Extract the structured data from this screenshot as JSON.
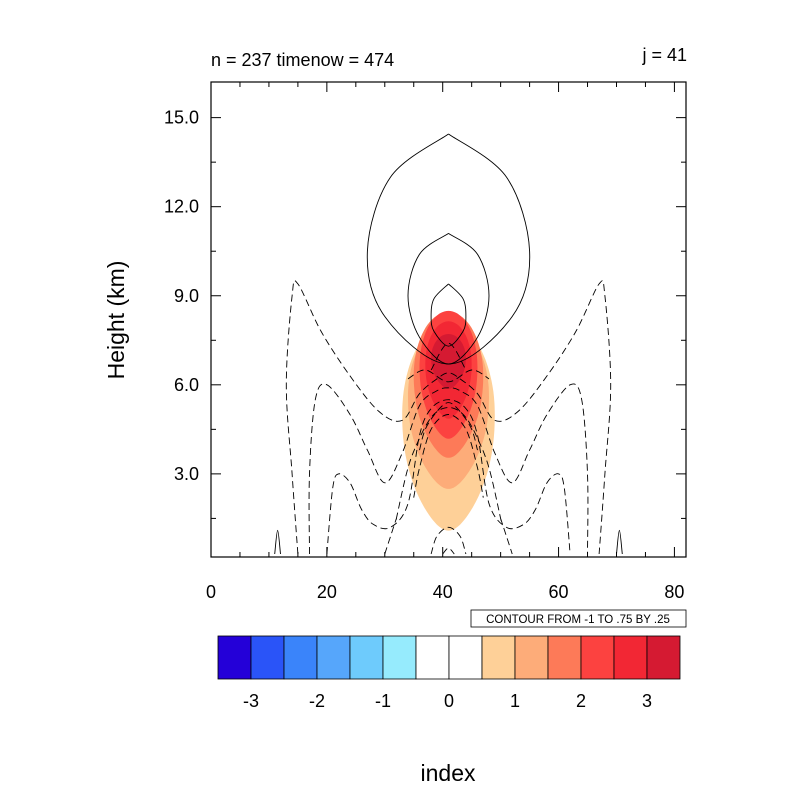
{
  "chart_data": {
    "type": "contour",
    "title_left": "n = 237 timenow = 474",
    "title_right": "j = 41",
    "xlabel": "index",
    "ylabel": "Height (km)",
    "xlim": [
      0,
      82
    ],
    "ylim": [
      0.2,
      16.2
    ],
    "x_ticks": [
      0,
      20,
      40,
      60,
      80
    ],
    "x_tick_labels": [
      "0",
      "20",
      "40",
      "60",
      "80"
    ],
    "y_ticks": [
      3.0,
      6.0,
      9.0,
      12.0,
      15.0
    ],
    "y_tick_labels": [
      "3.0",
      "6.0",
      "9.0",
      "12.0",
      "15.0"
    ],
    "contour_info": "CONTOUR FROM -1 TO .75 BY .25",
    "filled_regions": [
      {
        "level": 0.5,
        "color": "#fed098",
        "center_x": 41,
        "center_y": 5.0,
        "half_width": 8.0,
        "half_height": 3.4
      },
      {
        "level": 1.0,
        "color": "#fdac79",
        "center_x": 41,
        "center_y": 5.6,
        "half_width": 7.0,
        "half_height": 2.7
      },
      {
        "level": 1.5,
        "color": "#fd7a58",
        "center_x": 41,
        "center_y": 6.3,
        "half_width": 6.0,
        "half_height": 2.4
      },
      {
        "level": 2.0,
        "color": "#fc4240",
        "center_x": 41,
        "center_y": 6.6,
        "half_width": 5.0,
        "half_height": 2.1
      },
      {
        "level": 2.5,
        "color": "#f22734",
        "center_x": 41,
        "center_y": 6.7,
        "half_width": 4.0,
        "half_height": 1.6
      },
      {
        "level": 3.0,
        "color": "#d51a32",
        "center_x": 41,
        "center_y": 6.9,
        "half_width": 3.0,
        "half_height": 0.9
      }
    ],
    "solid_contours": [
      {
        "x": [
          41,
          51,
          55,
          52,
          41,
          30,
          27,
          31,
          41
        ],
        "y": [
          14.45,
          13.0,
          10.5,
          8.3,
          6.7,
          8.3,
          10.5,
          13.0,
          14.45
        ]
      },
      {
        "x": [
          41,
          46,
          48,
          46,
          41,
          36,
          34,
          36,
          41
        ],
        "y": [
          11.1,
          10.4,
          9.0,
          7.6,
          6.7,
          7.6,
          9.0,
          10.4,
          11.1
        ]
      },
      {
        "x": [
          41,
          43.5,
          44,
          43.5,
          41,
          38.5,
          38,
          38.5,
          41
        ],
        "y": [
          9.4,
          8.9,
          8.3,
          7.8,
          7.3,
          7.8,
          8.3,
          8.9,
          9.4
        ]
      },
      {
        "x": [
          11,
          11.5,
          12
        ],
        "y": [
          0.3,
          1.1,
          0.3
        ]
      },
      {
        "x": [
          70,
          70.5,
          71
        ],
        "y": [
          0.3,
          1.1,
          0.3
        ]
      }
    ],
    "dashed_contours": [
      {
        "x": [
          15,
          14,
          13,
          14,
          15,
          19,
          24,
          29,
          33,
          36,
          39,
          41,
          43,
          46,
          49,
          53,
          58,
          63,
          67,
          68,
          69,
          68,
          67
        ],
        "y": [
          0.3,
          3.0,
          6.0,
          9.0,
          9.4,
          7.8,
          6.3,
          5.1,
          4.8,
          5.7,
          6.2,
          6.4,
          6.2,
          5.7,
          4.8,
          5.1,
          6.3,
          7.8,
          9.4,
          9.0,
          6.0,
          3.0,
          0.3
        ]
      },
      {
        "x": [
          17,
          17,
          18,
          20,
          24,
          27,
          30,
          33,
          36,
          39,
          41,
          43,
          46,
          49,
          52,
          55,
          58,
          62,
          64,
          65,
          65
        ],
        "y": [
          0.3,
          3.0,
          5.5,
          6.0,
          5.0,
          3.8,
          2.7,
          3.7,
          5.3,
          5.8,
          5.9,
          5.8,
          5.3,
          3.7,
          2.7,
          3.8,
          5.0,
          6.0,
          5.5,
          3.0,
          0.3
        ]
      },
      {
        "x": [
          20,
          21,
          22,
          24,
          26,
          28,
          31,
          34,
          36,
          38,
          41,
          44,
          46,
          48,
          51,
          54,
          56,
          58,
          60,
          61,
          62
        ],
        "y": [
          0.3,
          2.5,
          3.0,
          2.7,
          1.8,
          1.3,
          1.2,
          2.0,
          4.3,
          5.2,
          5.5,
          5.2,
          4.3,
          2.0,
          1.2,
          1.3,
          1.8,
          2.7,
          3.0,
          2.5,
          0.3
        ]
      },
      {
        "x": [
          30,
          31,
          32,
          32,
          34,
          36,
          38,
          40,
          42,
          44,
          46,
          48,
          50,
          50,
          51,
          52
        ],
        "y": [
          0.3,
          0.9,
          1.5,
          1.5,
          3.2,
          4.2,
          4.9,
          5.2,
          5.2,
          4.9,
          4.2,
          3.2,
          1.5,
          1.5,
          0.9,
          0.3
        ]
      },
      {
        "x": [
          35,
          36,
          38,
          41,
          44,
          46,
          47
        ],
        "y": [
          2.2,
          3.2,
          4.5,
          5.0,
          4.5,
          3.2,
          2.2
        ]
      },
      {
        "x": [
          36,
          37,
          39,
          41,
          43,
          45,
          46
        ],
        "y": [
          3.8,
          4.5,
          5.1,
          5.4,
          5.1,
          4.5,
          3.8
        ]
      },
      {
        "x": [
          34,
          37,
          41,
          45,
          48
        ],
        "y": [
          6.2,
          6.5,
          6.1,
          6.5,
          6.2
        ]
      },
      {
        "x": [
          38,
          41,
          44
        ],
        "y": [
          6.5,
          7.4,
          6.5
        ]
      },
      {
        "x": [
          38,
          39,
          41,
          43,
          44
        ],
        "y": [
          0.3,
          0.9,
          1.2,
          0.9,
          0.3
        ]
      },
      {
        "x": [
          40,
          41,
          42
        ],
        "y": [
          0.3,
          0.5,
          0.3
        ]
      }
    ],
    "colorbar": {
      "colors": [
        "#2400d8",
        "#2a54f8",
        "#3a84fa",
        "#56a6fb",
        "#6ecbfc",
        "#96ebfd",
        "#ffffff",
        "#ffffff",
        "#fed098",
        "#fdac79",
        "#fd7a58",
        "#fc4240",
        "#f22734",
        "#d51a32"
      ],
      "tick_labels": [
        "-3",
        "-2",
        "-1",
        "0",
        "1",
        "2",
        "3"
      ]
    }
  }
}
